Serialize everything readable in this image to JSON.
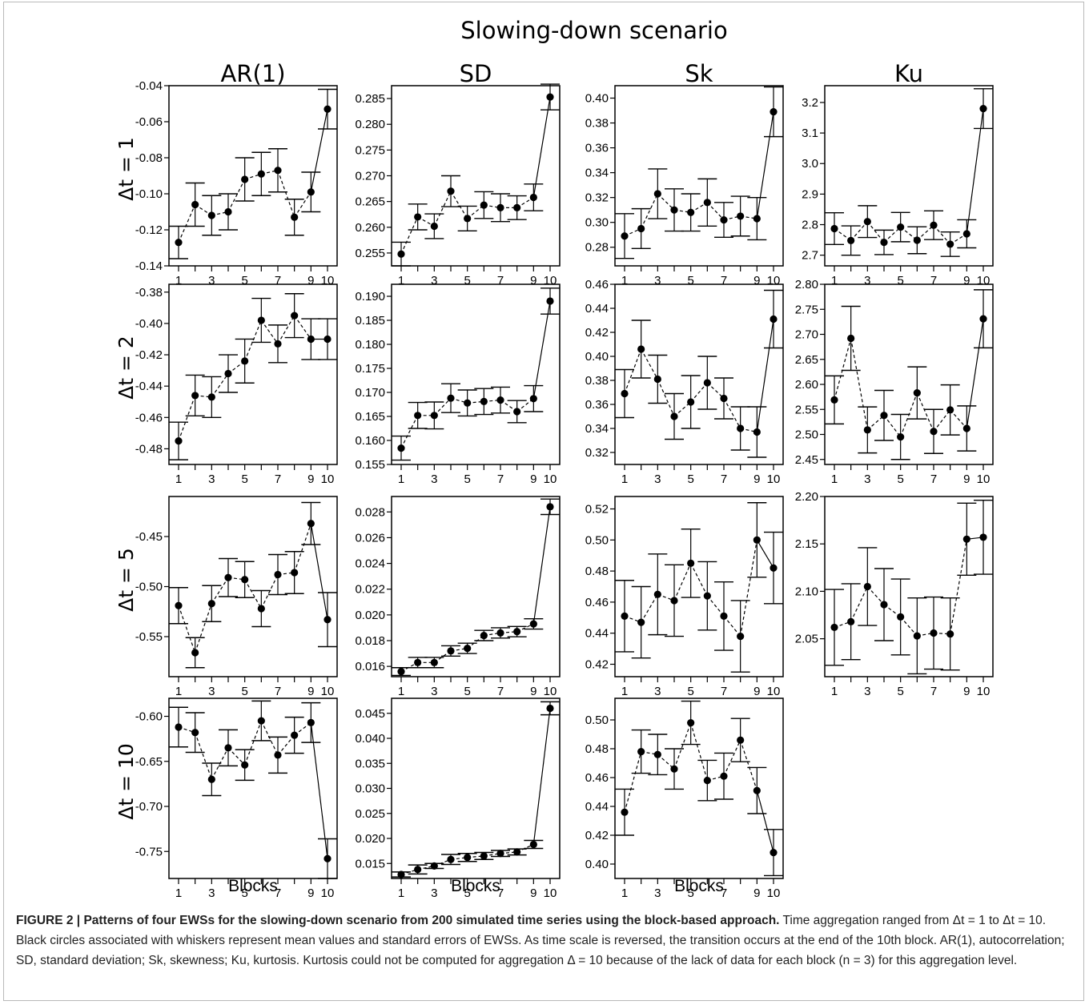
{
  "figure": {
    "title": "Slowing-down scenario",
    "x_axis_label": "Blocks",
    "caption": {
      "label": "FIGURE 2 | ",
      "bold_text": "Patterns of four EWSs for the slowing-down scenario from 200 simulated time series using the block-based approach.",
      "body": " Time aggregation ranged from Δt = 1 to Δt = 10. Black circles associated with whiskers represent mean values and standard errors of EWSs. As time scale is reversed, the transition occurs at the end of the 10th block. AR(1), autocorrelation; SD, standard deviation; Sk, skewness; Ku, kurtosis. Kurtosis could not be computed for aggregation Δ = 10 because of the lack of data for each block (n = 3) for this aggregation level."
    }
  },
  "chart_data": {
    "type": "scatter",
    "columns": [
      "AR(1)",
      "SD",
      "Sk",
      "Ku"
    ],
    "rows": [
      "Δt = 1",
      "Δt = 2",
      "Δt = 5",
      "Δt = 10"
    ],
    "x": [
      1,
      2,
      3,
      4,
      5,
      6,
      7,
      8,
      9,
      10
    ],
    "x_tick_labels": [
      "1",
      "3",
      "5",
      "7",
      "9",
      "10"
    ],
    "panels": [
      {
        "row": "Δt = 1",
        "column": "AR(1)",
        "ylim": [
          -0.14,
          -0.04
        ],
        "y_ticks": [
          "-0.04",
          "-0.06",
          "-0.08",
          "-0.10",
          "-0.12",
          "-0.14"
        ],
        "mean": [
          -0.127,
          -0.106,
          -0.112,
          -0.11,
          -0.092,
          -0.089,
          -0.087,
          -0.113,
          -0.099,
          -0.053
        ],
        "se": [
          0.009,
          0.012,
          0.011,
          0.01,
          0.012,
          0.012,
          0.012,
          0.01,
          0.011,
          0.011
        ]
      },
      {
        "row": "Δt = 1",
        "column": "SD",
        "ylim": [
          0.2525,
          0.2875
        ],
        "y_ticks": [
          "0.285",
          "0.280",
          "0.275",
          "0.270",
          "0.265",
          "0.260",
          "0.255"
        ],
        "mean": [
          0.2548,
          0.262,
          0.2602,
          0.267,
          0.2617,
          0.2643,
          0.2638,
          0.2638,
          0.2658,
          0.2853
        ],
        "se": [
          0.0023,
          0.0025,
          0.0024,
          0.003,
          0.0024,
          0.0026,
          0.0027,
          0.0023,
          0.0026,
          0.0025
        ]
      },
      {
        "row": "Δt = 1",
        "column": "Sk",
        "ylim": [
          0.265,
          0.41
        ],
        "y_ticks": [
          "0.40",
          "0.38",
          "0.36",
          "0.34",
          "0.32",
          "0.30",
          "0.28"
        ],
        "mean": [
          0.289,
          0.295,
          0.323,
          0.31,
          0.308,
          0.316,
          0.302,
          0.305,
          0.303,
          0.389
        ],
        "se": [
          0.018,
          0.016,
          0.02,
          0.017,
          0.015,
          0.019,
          0.014,
          0.016,
          0.017,
          0.02
        ]
      },
      {
        "row": "Δt = 1",
        "column": "Ku",
        "ylim": [
          2.665,
          3.255
        ],
        "y_ticks": [
          "3.2",
          "3.1",
          "3.0",
          "2.9",
          "2.8",
          "2.7"
        ],
        "mean": [
          2.787,
          2.748,
          2.81,
          2.742,
          2.792,
          2.749,
          2.798,
          2.736,
          2.77,
          3.18
        ],
        "se": [
          0.052,
          0.048,
          0.052,
          0.04,
          0.048,
          0.044,
          0.047,
          0.04,
          0.046,
          0.065
        ]
      },
      {
        "row": "Δt = 2",
        "column": "AR(1)",
        "ylim": [
          -0.49,
          -0.375
        ],
        "y_ticks": [
          "-0.38",
          "-0.40",
          "-0.42",
          "-0.44",
          "-0.46",
          "-0.48"
        ],
        "mean": [
          -0.475,
          -0.446,
          -0.447,
          -0.432,
          -0.424,
          -0.398,
          -0.413,
          -0.395,
          -0.41,
          -0.41
        ],
        "se": [
          0.012,
          0.013,
          0.013,
          0.012,
          0.014,
          0.014,
          0.012,
          0.014,
          0.013,
          0.013
        ]
      },
      {
        "row": "Δt = 2",
        "column": "SD",
        "ylim": [
          0.155,
          0.1925
        ],
        "y_ticks": [
          "0.190",
          "0.185",
          "0.180",
          "0.175",
          "0.170",
          "0.165",
          "0.160",
          "0.155"
        ],
        "mean": [
          0.1584,
          0.1652,
          0.1652,
          0.1688,
          0.1678,
          0.1681,
          0.1684,
          0.166,
          0.1687,
          0.189
        ],
        "se": [
          0.0025,
          0.0027,
          0.0028,
          0.003,
          0.0027,
          0.0027,
          0.0027,
          0.0023,
          0.0027,
          0.0027
        ]
      },
      {
        "row": "Δt = 2",
        "column": "Sk",
        "ylim": [
          0.31,
          0.46
        ],
        "y_ticks": [
          "0.46",
          "0.44",
          "0.42",
          "0.40",
          "0.38",
          "0.36",
          "0.34",
          "0.32"
        ],
        "mean": [
          0.369,
          0.406,
          0.381,
          0.35,
          0.362,
          0.378,
          0.365,
          0.34,
          0.337,
          0.431
        ],
        "se": [
          0.02,
          0.024,
          0.02,
          0.019,
          0.022,
          0.022,
          0.017,
          0.018,
          0.021,
          0.024
        ]
      },
      {
        "row": "Δt = 2",
        "column": "Ku",
        "ylim": [
          2.44,
          2.8
        ],
        "y_ticks": [
          "2.80",
          "2.75",
          "2.70",
          "2.65",
          "2.60",
          "2.55",
          "2.50",
          "2.45"
        ],
        "mean": [
          2.569,
          2.692,
          2.509,
          2.538,
          2.495,
          2.583,
          2.506,
          2.549,
          2.512,
          2.731
        ],
        "se": [
          0.048,
          0.064,
          0.046,
          0.05,
          0.045,
          0.052,
          0.044,
          0.05,
          0.045,
          0.058
        ]
      },
      {
        "row": "Δt = 5",
        "column": "AR(1)",
        "ylim": [
          -0.59,
          -0.41
        ],
        "y_ticks": [
          "-0.45",
          "-0.50",
          "-0.55"
        ],
        "mean": [
          -0.519,
          -0.566,
          -0.517,
          -0.491,
          -0.493,
          -0.522,
          -0.488,
          -0.486,
          -0.437,
          -0.533
        ],
        "se": [
          0.018,
          0.015,
          0.018,
          0.019,
          0.018,
          0.018,
          0.02,
          0.021,
          0.021,
          0.027
        ]
      },
      {
        "row": "Δt = 5",
        "column": "SD",
        "ylim": [
          0.0152,
          0.0292
        ],
        "y_ticks": [
          "0.028",
          "0.026",
          "0.024",
          "0.022",
          "0.020",
          "0.018",
          "0.016"
        ],
        "mean": [
          0.0156,
          0.0163,
          0.0163,
          0.0172,
          0.0174,
          0.0184,
          0.0186,
          0.0187,
          0.0193,
          0.0284
        ],
        "se": [
          0.0003,
          0.0004,
          0.0004,
          0.0004,
          0.0004,
          0.0004,
          0.0004,
          0.0004,
          0.0004,
          0.0006
        ]
      },
      {
        "row": "Δt = 5",
        "column": "Sk",
        "ylim": [
          0.412,
          0.528
        ],
        "y_ticks": [
          "0.52",
          "0.50",
          "0.48",
          "0.46",
          "0.44",
          "0.42"
        ],
        "mean": [
          0.451,
          0.447,
          0.465,
          0.461,
          0.485,
          0.464,
          0.451,
          0.438,
          0.5,
          0.482
        ],
        "se": [
          0.023,
          0.023,
          0.026,
          0.023,
          0.022,
          0.022,
          0.022,
          0.023,
          0.024,
          0.023
        ]
      },
      {
        "row": "Δt = 5",
        "column": "Ku",
        "ylim": [
          2.01,
          2.2
        ],
        "y_ticks": [
          "2.20",
          "2.15",
          "2.10",
          "2.05"
        ],
        "mean": [
          2.062,
          2.068,
          2.105,
          2.086,
          2.073,
          2.053,
          2.056,
          2.055,
          2.155,
          2.157
        ],
        "se": [
          0.04,
          0.04,
          0.041,
          0.038,
          0.04,
          0.04,
          0.038,
          0.038,
          0.038,
          0.039
        ]
      },
      {
        "row": "Δt = 10",
        "column": "AR(1)",
        "ylim": [
          -0.78,
          -0.58
        ],
        "y_ticks": [
          "-0.60",
          "-0.65",
          "-0.70",
          "-0.75"
        ],
        "mean": [
          -0.612,
          -0.618,
          -0.67,
          -0.635,
          -0.654,
          -0.605,
          -0.643,
          -0.621,
          -0.607,
          -0.758
        ],
        "se": [
          0.022,
          0.022,
          0.018,
          0.02,
          0.017,
          0.022,
          0.02,
          0.02,
          0.022,
          0.022
        ]
      },
      {
        "row": "Δt = 10",
        "column": "SD",
        "ylim": [
          0.012,
          0.048
        ],
        "y_ticks": [
          "0.045",
          "0.040",
          "0.035",
          "0.030",
          "0.025",
          "0.020",
          "0.015"
        ],
        "mean": [
          0.0128,
          0.0138,
          0.0145,
          0.0158,
          0.0162,
          0.0165,
          0.017,
          0.0173,
          0.0188,
          0.046
        ],
        "se": [
          0.0005,
          0.0009,
          0.0005,
          0.001,
          0.0008,
          0.0007,
          0.0006,
          0.0006,
          0.0008,
          0.0013
        ]
      },
      {
        "row": "Δt = 10",
        "column": "Sk",
        "ylim": [
          0.39,
          0.515
        ],
        "y_ticks": [
          "0.50",
          "0.48",
          "0.46",
          "0.44",
          "0.42",
          "0.40"
        ],
        "mean": [
          0.436,
          0.478,
          0.476,
          0.466,
          0.498,
          0.458,
          0.461,
          0.486,
          0.451,
          0.408
        ],
        "se": [
          0.016,
          0.015,
          0.014,
          0.014,
          0.015,
          0.014,
          0.016,
          0.015,
          0.016,
          0.016
        ]
      },
      null
    ]
  }
}
